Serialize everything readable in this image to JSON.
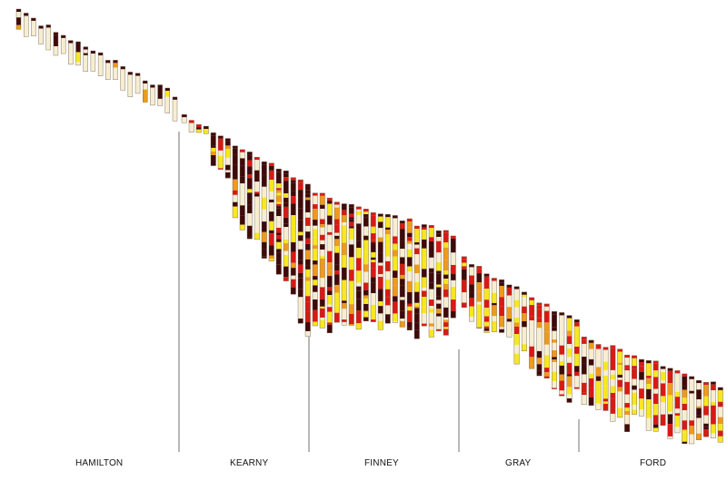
{
  "counties": [
    {
      "id": "hamilton",
      "name": "HAMILTON"
    },
    {
      "id": "kearny",
      "name": "KEARNY"
    },
    {
      "id": "finney",
      "name": "FINNEY"
    },
    {
      "id": "gray",
      "name": "GRAY"
    },
    {
      "id": "ford",
      "name": "FORD"
    }
  ],
  "palette": {
    "pale": "#f7eed2",
    "dark": "#3e0a0a",
    "red": "#d81a14",
    "yellow": "#f7e720",
    "orange": "#ee9a1e",
    "outline": "#6e5a48",
    "boundary": "#8a8a8a"
  }
}
